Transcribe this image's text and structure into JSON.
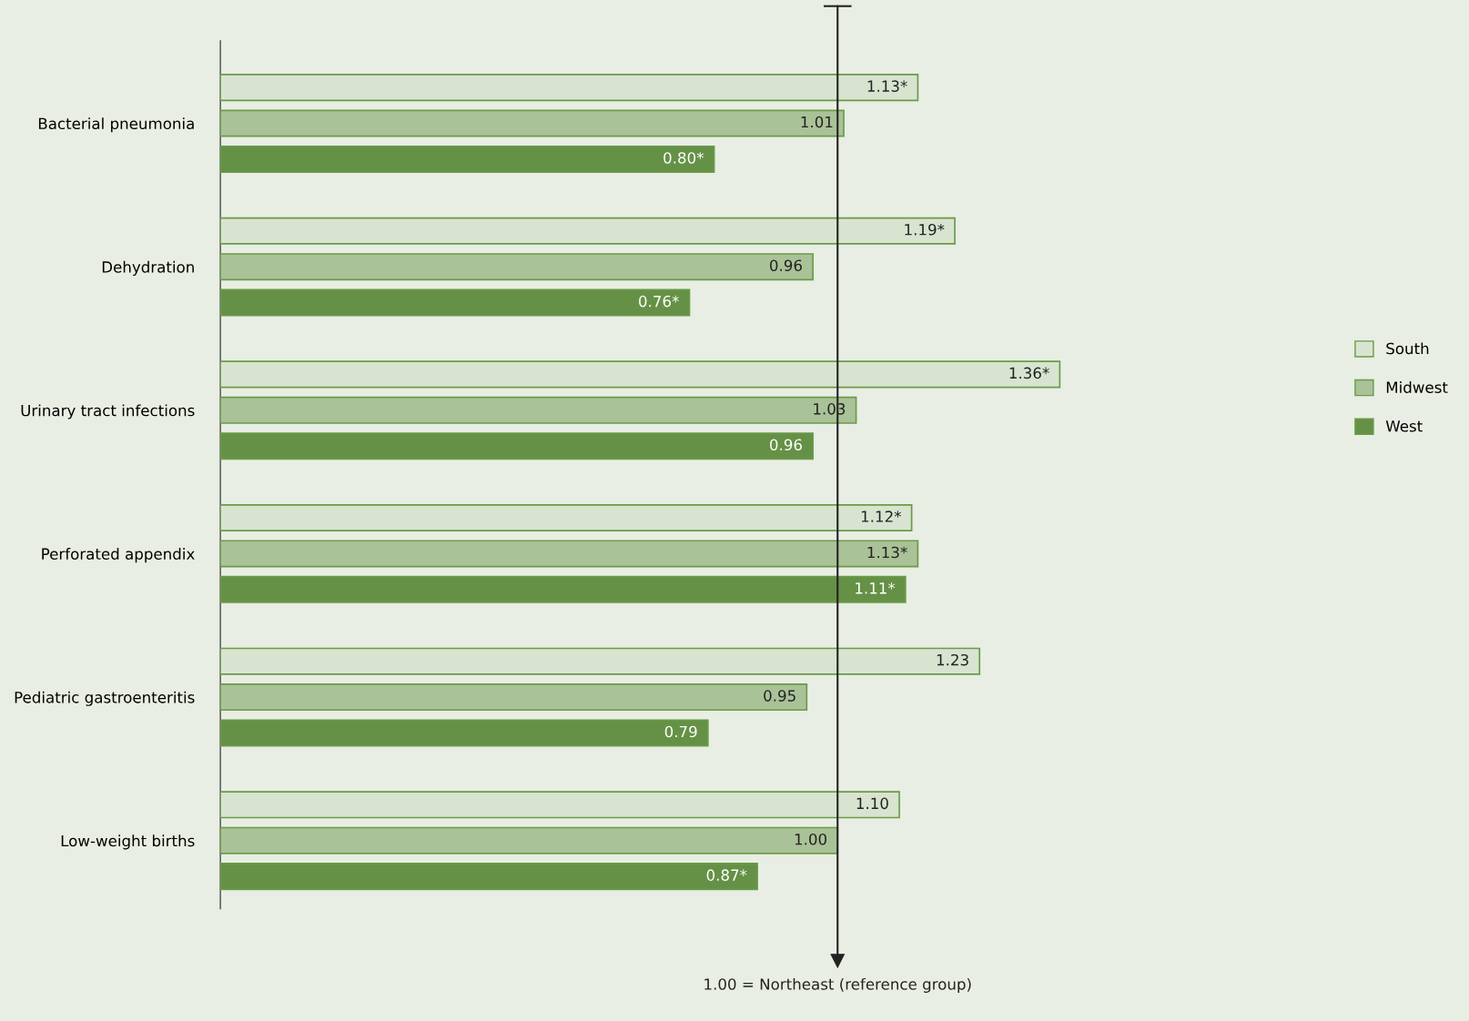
{
  "chart_data": {
    "type": "bar",
    "orientation": "horizontal",
    "categories": [
      "Bacterial pneumonia",
      "Dehydration",
      "Urinary tract infections",
      "Perforated appendix",
      "Pediatric gastroenteritis",
      "Low-weight births"
    ],
    "series": [
      {
        "name": "South",
        "color": "#d8e4d0",
        "values": [
          1.13,
          1.19,
          1.36,
          1.12,
          1.23,
          1.1
        ],
        "value_labels": [
          "1.13*",
          "1.19*",
          "1.36*",
          "1.12*",
          "1.23",
          "1.10"
        ]
      },
      {
        "name": "Midwest",
        "color": "#aac297",
        "values": [
          1.01,
          0.96,
          1.03,
          1.13,
          0.95,
          1.0
        ],
        "value_labels": [
          "1.01",
          "0.96",
          "1.03",
          "1.13*",
          "0.95",
          "1.00"
        ]
      },
      {
        "name": "West",
        "color": "#659146",
        "values": [
          0.8,
          0.76,
          0.96,
          1.11,
          0.79,
          0.87
        ],
        "value_labels": [
          "0.80*",
          "0.76*",
          "0.96",
          "1.11*",
          "0.79",
          "0.87*"
        ]
      }
    ],
    "tick_labels": "y",
    "legend": "right",
    "grid": false,
    "ref_lines": [
      {
        "axis": "x",
        "value": 1.0,
        "label": "1.00 = Northeast (reference group)",
        "color": "#222222"
      }
    ]
  }
}
